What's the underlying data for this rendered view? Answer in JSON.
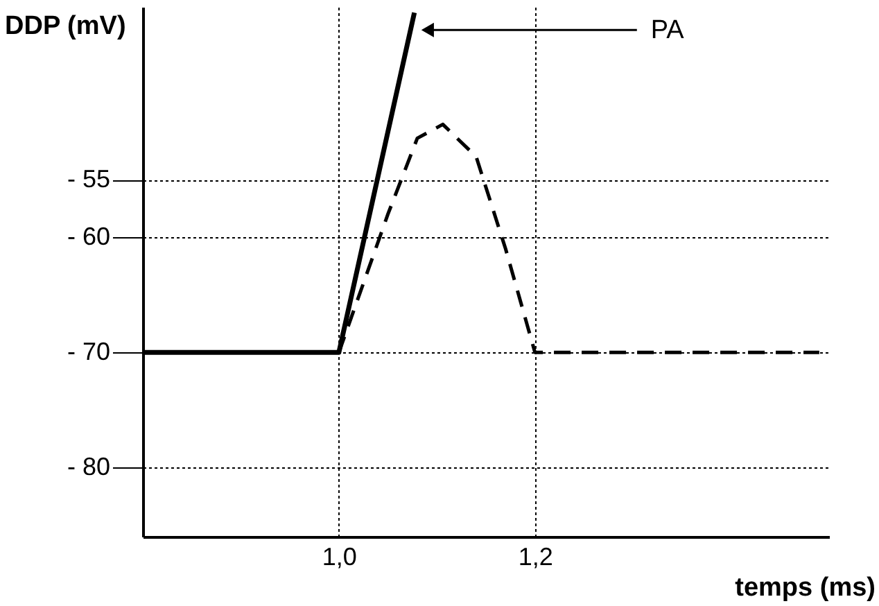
{
  "chart_data": {
    "type": "line",
    "xlabel": "temps (ms)",
    "ylabel": "DDP (mV)",
    "xlim": [
      0.8,
      1.5
    ],
    "ylim": [
      -86,
      -40
    ],
    "xticks": [
      {
        "value": 1.0,
        "label": "1,0"
      },
      {
        "value": 1.2,
        "label": "1,2"
      }
    ],
    "yticks": [
      {
        "value": -80,
        "label": "- 80"
      },
      {
        "value": -70,
        "label": "- 70"
      },
      {
        "value": -60,
        "label": "- 60"
      },
      {
        "value": -55,
        "label": "- 55"
      }
    ],
    "grid": true,
    "marker": "none",
    "series": [
      {
        "color": "#000000",
        "line_style": "solid",
        "x": [
          0.8,
          1.0,
          1.077
        ],
        "values": [
          -70,
          -70,
          -40.5
        ]
      },
      {
        "color": "#000000",
        "line_style": "dashed",
        "x": [
          1.0,
          1.05,
          1.08,
          1.106,
          1.14,
          1.17,
          1.2,
          1.49
        ],
        "values": [
          -70,
          -58,
          -51.4,
          -50.2,
          -53,
          -61,
          -70,
          -70
        ]
      }
    ],
    "annotations": [
      {
        "text": "PA",
        "x": 1.08,
        "y": -42
      }
    ]
  }
}
